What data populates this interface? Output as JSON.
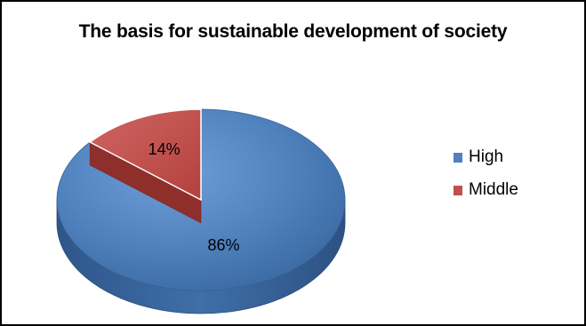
{
  "chart_data": {
    "type": "pie",
    "title": "The basis for sustainable development of society",
    "categories": [
      "High",
      "Middle"
    ],
    "values": [
      86,
      14
    ],
    "labels": [
      "86%",
      "14%"
    ],
    "colors": [
      "#4f81bd",
      "#c0504d"
    ],
    "legend_position": "right"
  }
}
